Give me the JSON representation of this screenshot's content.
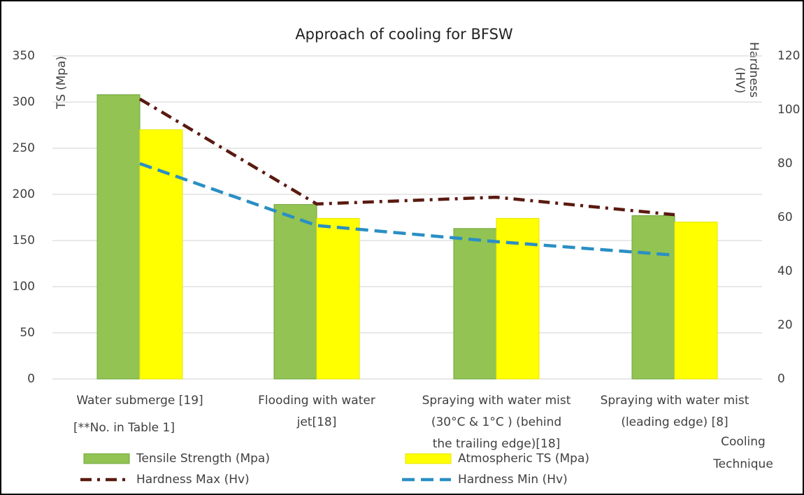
{
  "chart_data": {
    "type": "bar",
    "title": "Approach of cooling for BFSW",
    "y_label": "TS (Mpa)",
    "y2_label": [
      "Hardness",
      "(HV)"
    ],
    "x_label": [
      "Cooling",
      "Technique"
    ],
    "annotation": "[**No. in Table 1]",
    "categories": [
      [
        "Water submerge [19]"
      ],
      [
        "Flooding with water",
        "jet[18]"
      ],
      [
        "Spraying with water mist",
        "(30°C & 1°C ) (behind",
        "the trailing edge)[18]"
      ],
      [
        "Spraying with water mist",
        "(leading edge) [8]"
      ]
    ],
    "series": [
      {
        "name": "Tensile Strength (Mpa)",
        "type": "bar",
        "color": "#92c353",
        "values": [
          308,
          189,
          163,
          177
        ]
      },
      {
        "name": "Atmospheric TS (Mpa)",
        "type": "bar",
        "color": "#ffff00",
        "values": [
          270,
          174,
          174,
          170
        ]
      },
      {
        "name": "Hardness Max (Hv)",
        "type": "line",
        "color": "#5a1a10",
        "dash": "16 8 4 8",
        "axis": "y2",
        "values": [
          104,
          65,
          67.5,
          61
        ]
      },
      {
        "name": "Hardness Min (Hv)",
        "type": "line",
        "color": "#2a8fc4",
        "dash": "18 9",
        "axis": "y2",
        "values": [
          80,
          57,
          51,
          46
        ]
      }
    ],
    "ylim": [
      0,
      350
    ],
    "yticks": [
      0,
      50,
      100,
      150,
      200,
      250,
      300,
      350
    ],
    "y2lim": [
      0,
      120
    ],
    "y2ticks": [
      0,
      20,
      40,
      60,
      80,
      100,
      120
    ],
    "grid": true
  }
}
